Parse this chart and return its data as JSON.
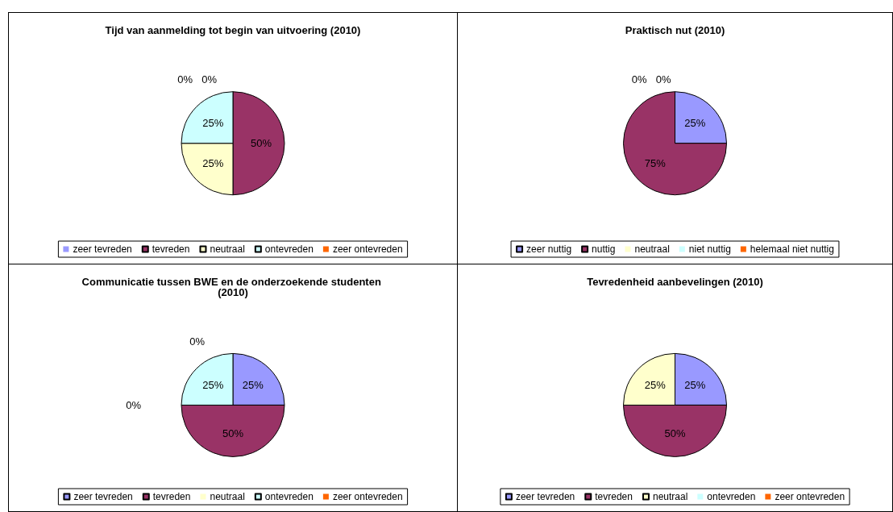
{
  "chart_data": [
    {
      "type": "pie",
      "title": "Tijd van aanmelding tot begin van uitvoering (2010)",
      "categories": [
        "zeer tevreden",
        "tevreden",
        "neutraal",
        "ontevreden",
        "zeer ontevreden"
      ],
      "values": [
        0,
        50,
        25,
        25,
        0
      ],
      "colors": [
        "#9999ff",
        "#993366",
        "#ffffcc",
        "#ccffff",
        "#ff6600"
      ],
      "value_labels": [
        "0%",
        "50%",
        "25%",
        "25%",
        "0%"
      ],
      "legend": "bottom"
    },
    {
      "type": "pie",
      "title": "Praktisch nut (2010)",
      "categories": [
        "zeer nuttig",
        "nuttig",
        "neutraal",
        "niet nuttig",
        "helemaal niet nuttig"
      ],
      "values": [
        25,
        75,
        0,
        0,
        0
      ],
      "colors": [
        "#9999ff",
        "#993366",
        "#ffffcc",
        "#ccffff",
        "#ff6600"
      ],
      "value_labels": [
        "25%",
        "75%",
        null,
        "0%",
        "0%"
      ],
      "legend": "bottom"
    },
    {
      "type": "pie",
      "title": "Communicatie tussen BWE en de onderzoekende studenten (2010)",
      "categories": [
        "zeer tevreden",
        "tevreden",
        "neutraal",
        "ontevreden",
        "zeer ontevreden"
      ],
      "values": [
        25,
        50,
        0,
        25,
        0
      ],
      "colors": [
        "#9999ff",
        "#993366",
        "#ffffcc",
        "#ccffff",
        "#ff6600"
      ],
      "value_labels": [
        "25%",
        "50%",
        "0%",
        "25%",
        "0%"
      ],
      "legend": "bottom"
    },
    {
      "type": "pie",
      "title": "Tevredenheid aanbevelingen (2010)",
      "categories": [
        "zeer tevreden",
        "tevreden",
        "neutraal",
        "ontevreden",
        "zeer ontevreden"
      ],
      "values": [
        25,
        50,
        25,
        0,
        0
      ],
      "colors": [
        "#9999ff",
        "#993366",
        "#ffffcc",
        "#ccffff",
        "#ff6600"
      ],
      "value_labels": [
        "25%",
        "50%",
        "25%",
        null,
        null
      ],
      "legend": "bottom"
    }
  ]
}
